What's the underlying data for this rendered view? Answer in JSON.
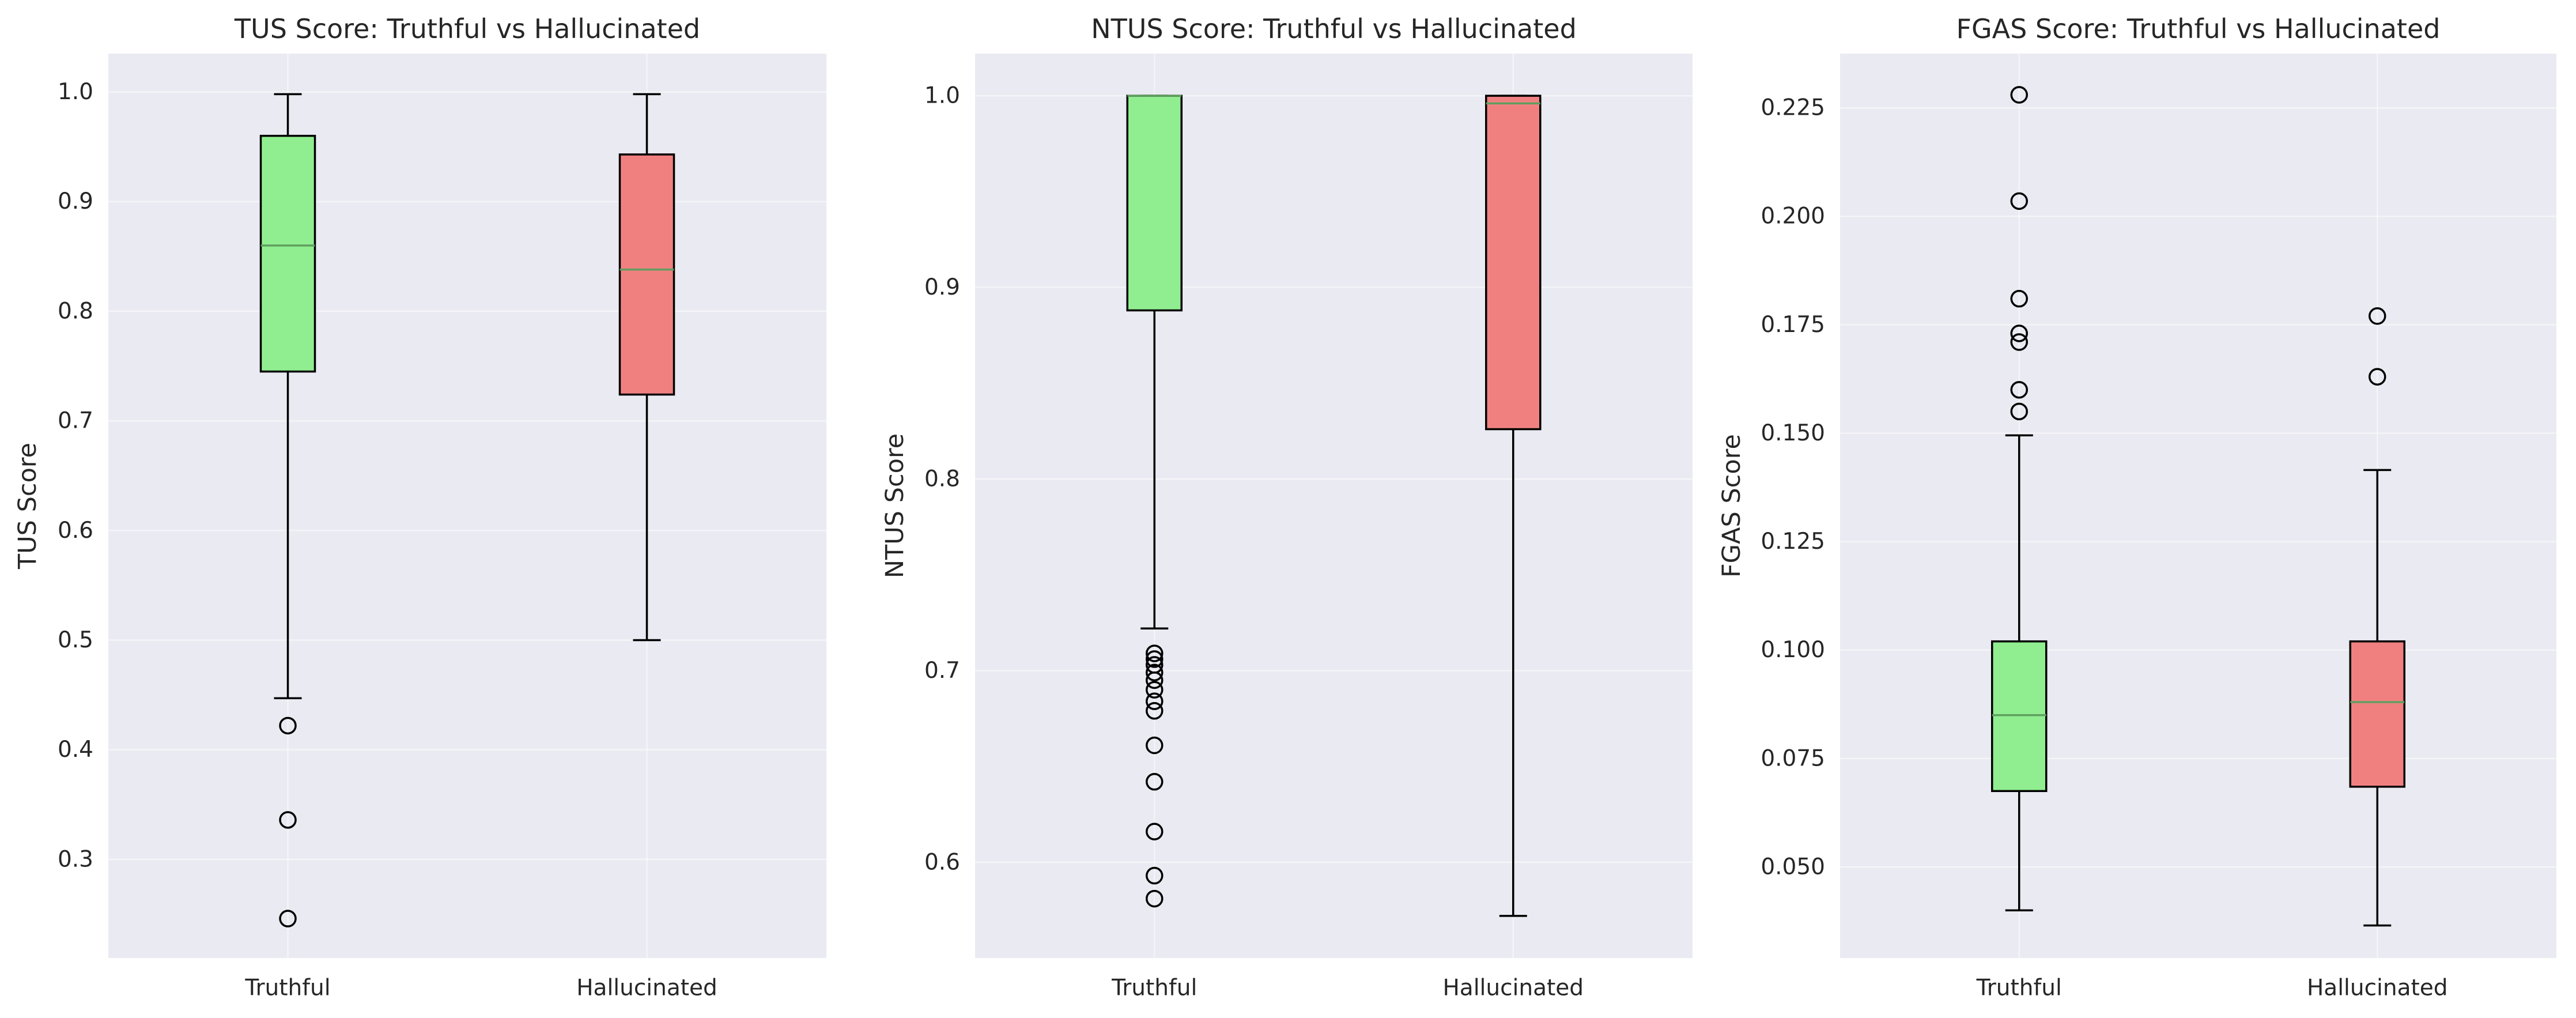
{
  "chart_data": [
    {
      "type": "box",
      "title": "TUS Score: Truthful vs Hallucinated",
      "ylabel": "TUS Score",
      "xlabel": "",
      "categories": [
        "Truthful",
        "Hallucinated"
      ],
      "ylim": [
        0.21,
        1.035
      ],
      "yticks": [
        0.3,
        0.4,
        0.5,
        0.6,
        0.7,
        0.8,
        0.9,
        1.0
      ],
      "ytick_labels": [
        "0.3",
        "0.4",
        "0.5",
        "0.6",
        "0.7",
        "0.8",
        "0.9",
        "1.0"
      ],
      "grid": true,
      "boxes": [
        {
          "category": "Truthful",
          "whisker_low": 0.447,
          "q1": 0.745,
          "median": 0.86,
          "q3": 0.96,
          "whisker_high": 0.998,
          "outliers": [
            0.422,
            0.336,
            0.246
          ]
        },
        {
          "category": "Hallucinated",
          "whisker_low": 0.5,
          "q1": 0.724,
          "median": 0.838,
          "q3": 0.943,
          "whisker_high": 0.998,
          "outliers": []
        }
      ]
    },
    {
      "type": "box",
      "title": "NTUS Score: Truthful vs Hallucinated",
      "ylabel": "NTUS Score",
      "xlabel": "",
      "categories": [
        "Truthful",
        "Hallucinated"
      ],
      "ylim": [
        0.55,
        1.022
      ],
      "yticks": [
        0.6,
        0.7,
        0.8,
        0.9,
        1.0
      ],
      "ytick_labels": [
        "0.6",
        "0.7",
        "0.8",
        "0.9",
        "1.0"
      ],
      "grid": true,
      "boxes": [
        {
          "category": "Truthful",
          "whisker_low": 0.722,
          "q1": 0.888,
          "median": 1.0,
          "q3": 1.0,
          "whisker_high": 1.0,
          "outliers": [
            0.709,
            0.706,
            0.703,
            0.699,
            0.695,
            0.69,
            0.684,
            0.679,
            0.661,
            0.642,
            0.616,
            0.593,
            0.581
          ]
        },
        {
          "category": "Hallucinated",
          "whisker_low": 0.572,
          "q1": 0.826,
          "median": 0.996,
          "q3": 1.0,
          "whisker_high": 1.0,
          "outliers": []
        }
      ]
    },
    {
      "type": "box",
      "title": "FGAS Score: Truthful vs Hallucinated",
      "ylabel": "FGAS Score",
      "xlabel": "",
      "categories": [
        "Truthful",
        "Hallucinated"
      ],
      "ylim": [
        0.029,
        0.2375
      ],
      "yticks": [
        0.05,
        0.075,
        0.1,
        0.125,
        0.15,
        0.175,
        0.2,
        0.225
      ],
      "ytick_labels": [
        "0.050",
        "0.075",
        "0.100",
        "0.125",
        "0.150",
        "0.175",
        "0.200",
        "0.225"
      ],
      "grid": true,
      "boxes": [
        {
          "category": "Truthful",
          "whisker_low": 0.04,
          "q1": 0.0675,
          "median": 0.085,
          "q3": 0.102,
          "whisker_high": 0.1495,
          "outliers": [
            0.155,
            0.16,
            0.171,
            0.173,
            0.181,
            0.2035,
            0.228
          ]
        },
        {
          "category": "Hallucinated",
          "whisker_low": 0.0365,
          "q1": 0.0685,
          "median": 0.088,
          "q3": 0.102,
          "whisker_high": 0.1415,
          "outliers": [
            0.163,
            0.177
          ]
        }
      ]
    }
  ],
  "colors": {
    "truthful_box": "#90ee90",
    "hallucinated_box": "#f08080",
    "median": "#5f9f5f",
    "plot_background": "#eaeaf2",
    "grid": "#ffffff"
  }
}
